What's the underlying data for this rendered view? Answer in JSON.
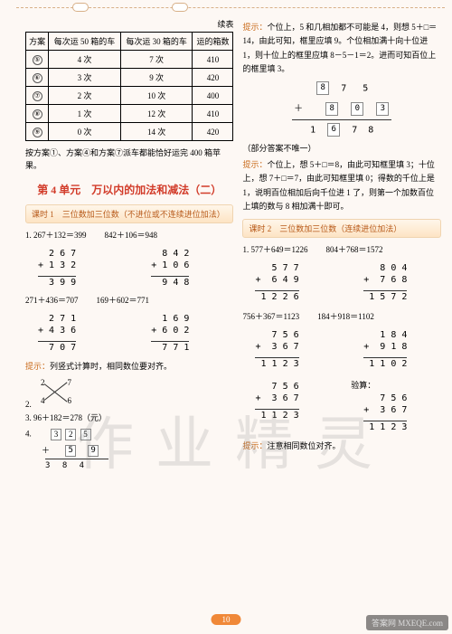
{
  "header": {
    "continued": "续表"
  },
  "table": {
    "columns": [
      "方案",
      "每次运 50 箱的车",
      "每次运 30 箱的车",
      "运的箱数"
    ],
    "rows": [
      [
        "⑤",
        "4 次",
        "7 次",
        "410"
      ],
      [
        "⑥",
        "3 次",
        "9 次",
        "420"
      ],
      [
        "⑦",
        "2 次",
        "10 次",
        "400"
      ],
      [
        "⑧",
        "1 次",
        "12 次",
        "410"
      ],
      [
        "⑨",
        "0 次",
        "14 次",
        "420"
      ]
    ]
  },
  "left": {
    "conclusion": "按方案①、方案④和方案⑦派车都能恰好运完 400 箱苹果。",
    "unit_title": "第 4 单元　万以内的加法和减法（二）",
    "lesson1_title": "课时 1　三位数加三位数（不进位或不连续进位加法）",
    "eq1a": "1. 267＋132＝399",
    "eq1b": "842＋106＝948",
    "add1a": "  2 6 7\n+ 1 3 2",
    "sum1a": "  3 9 9",
    "add1b": "  8 4 2\n+ 1 0 6",
    "sum1b": "  9 4 8",
    "eq2a": "271＋436＝707",
    "eq2b": "169＋602＝771",
    "add2a": "  2 7 1\n+ 4 3 6",
    "sum2a": "  7 0 7",
    "add2b": "  1 6 9\n+ 6 0 2",
    "sum2b": "  7 7 1",
    "hint2": "提示：列竖式计算时，相同数位要对齐。",
    "item3": "3. 96＋182＝278（元）",
    "item4_label": "4.",
    "box_row_top": [
      "3",
      "2",
      "5"
    ],
    "box_row_mid": [
      "5",
      "9"
    ],
    "box_row_sum": "3  8  4",
    "cross": {
      "a": "2",
      "b": "7",
      "c": "4",
      "d": "6"
    }
  },
  "right": {
    "hint1": "提示：个位上，5 和几相加都不可能是 4，则想 5＋□＝14，由此可知，框里应填 9。个位相加满十向十位进 1，则十位上的框里应填 8－5－1＝2。进而可知百位上的框里填 3。",
    "vbox1_top": [
      "8",
      "7",
      "5"
    ],
    "vbox1_mid_prefix": "＋",
    "vbox1_mid": [
      "8",
      "0",
      "3"
    ],
    "vbox1_sum": "1  6  7  8",
    "vbox1_sum_box": "6",
    "note_unique": "（部分答案不唯一）",
    "hint2": "提示：个位上，想 5＋□＝8，由此可知框里填 3；十位上，想 7＋□＝7，由此可知框里填 0；得数的千位上是1，说明百位相加后向千位进 1 了，则第一个加数百位上填的数与 8 相加满十即可。",
    "lesson2_title": "课时 2　三位数加三位数（连续进位加法）",
    "eq1a": "1. 577＋649＝1226",
    "eq1b": "804＋768＝1572",
    "add1a": "   5 7 7\n+  6 4 9",
    "sum1a": " 1 2 2 6",
    "add1b": "   8 0 4\n+  7 6 8",
    "sum1b": " 1 5 7 2",
    "eq2a": "756＋367＝1123",
    "eq2b": "184＋918＝1102",
    "add2a": "   7 5 6\n+  3 6 7",
    "sum2a": " 1 1 2 3",
    "add2b": "   1 8 4\n+  9 1 8",
    "sum2b": " 1 1 0 2",
    "eq3a": "   7 5 6\n+  3 6 7",
    "sum3a": " 1 1 2 3",
    "eq3b_label": "验算：",
    "eq3b": "   7 5 6\n+  3 6 7",
    "sum3b": " 1 1 2 3",
    "hint3": "提示：注意相同数位对齐。"
  },
  "page_number": "10",
  "watermark": "作业精灵",
  "corner": "答案网\nMXEQE.com"
}
